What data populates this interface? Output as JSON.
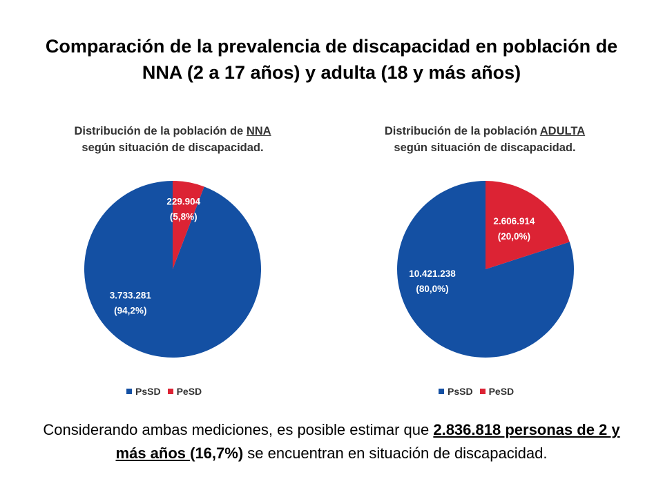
{
  "title": {
    "line1": "Comparación de la prevalencia de discapacidad en población de",
    "line2": "NNA (2 a 17 años) y adulta (18 y más años)"
  },
  "colors": {
    "PsSD": "#1450A3",
    "PeSD": "#DC2334"
  },
  "chart_data": [
    {
      "type": "pie",
      "title_prefix": "Distribución de la población de ",
      "title_underlined": "NNA",
      "title_line2": "según situación de discapacidad.",
      "series": [
        {
          "name": "PsSD",
          "value": 3733281,
          "value_label": "3.733.281",
          "percent_label": "(94,2%)",
          "color": "#1450A3"
        },
        {
          "name": "PeSD",
          "value": 229904,
          "value_label": "229.904",
          "percent_label": "(5,8%)",
          "color": "#DC2334"
        }
      ],
      "legend": [
        "PsSD",
        "PeSD"
      ],
      "legend_position": "bottom"
    },
    {
      "type": "pie",
      "title_prefix": "Distribución de la población ",
      "title_underlined": "ADULTA",
      "title_line2": "según situación de discapacidad.",
      "series": [
        {
          "name": "PsSD",
          "value": 10421238,
          "value_label": "10.421.238",
          "percent_label": "(80,0%)",
          "color": "#1450A3"
        },
        {
          "name": "PeSD",
          "value": 2606914,
          "value_label": "2.606.914",
          "percent_label": "(20,0%)",
          "color": "#DC2334"
        }
      ],
      "legend": [
        "PsSD",
        "PeSD"
      ],
      "legend_position": "bottom"
    }
  ],
  "footer": {
    "text_before": "Considerando ambas mediciones, es posible estimar que ",
    "highlight": "2.836.818 personas de 2 y más años ",
    "percent": "(16,7%)",
    "text_after": " se encuentran en situación de discapacidad."
  }
}
